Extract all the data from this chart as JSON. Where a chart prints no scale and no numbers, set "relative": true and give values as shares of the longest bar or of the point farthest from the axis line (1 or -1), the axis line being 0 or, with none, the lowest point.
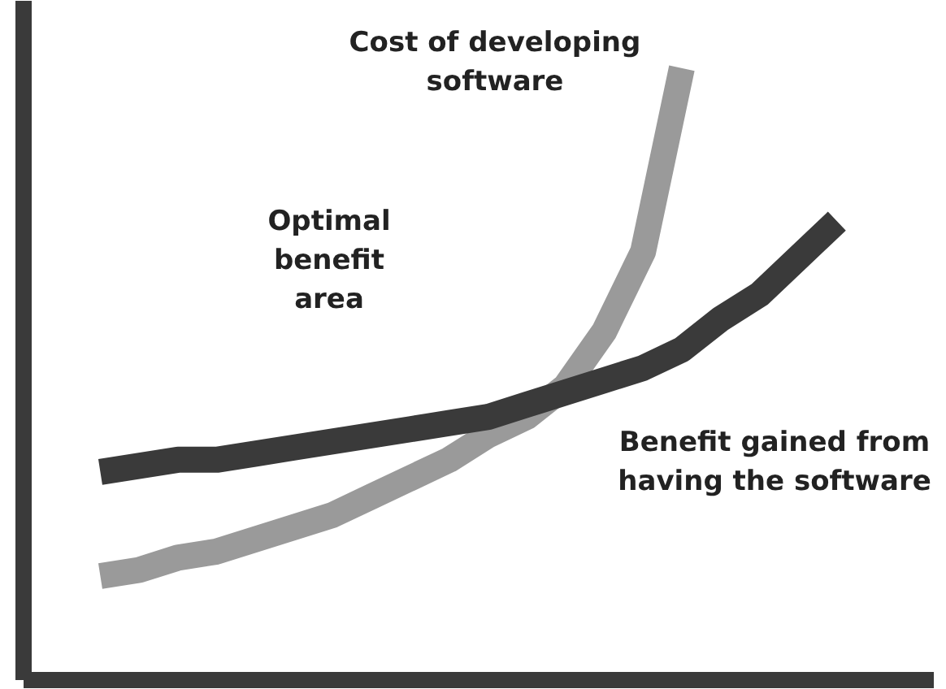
{
  "chart_data": {
    "type": "line",
    "relative": true,
    "categories": [
      null,
      null,
      null,
      null,
      null,
      null,
      null,
      null,
      null,
      null,
      null,
      null,
      null,
      null,
      null,
      null,
      null,
      null,
      null,
      null
    ],
    "series": [
      {
        "color": "#9a9a9a",
        "values": [
          0.17,
          0.18,
          0.2,
          0.21,
          0.23,
          0.25,
          0.27,
          0.3,
          0.33,
          0.36,
          0.4,
          0.43,
          0.48,
          0.57,
          0.7,
          1.0,
          null,
          null,
          null,
          null
        ]
      },
      {
        "color": "#3a3a3a",
        "values": [
          0.34,
          0.35,
          0.36,
          0.36,
          0.37,
          0.38,
          0.39,
          0.4,
          0.41,
          0.42,
          0.43,
          0.45,
          0.47,
          0.49,
          0.51,
          0.54,
          0.59,
          0.63,
          0.69,
          0.75
        ]
      }
    ],
    "annotations": [
      "Cost of developing software",
      "Optimal benefit area",
      "Benefit gained from having the software"
    ],
    "grid": false,
    "marker": "none",
    "line_style": "solid"
  }
}
